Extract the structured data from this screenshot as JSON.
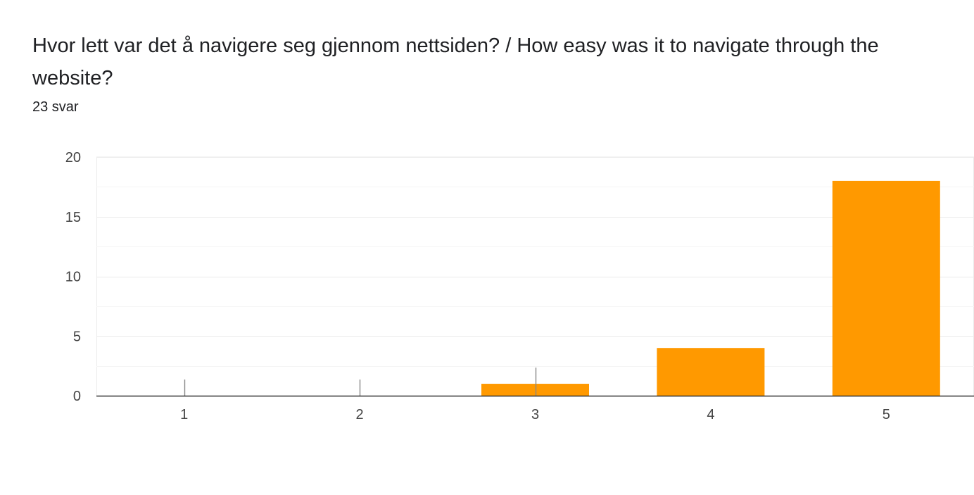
{
  "question": {
    "title": "Hvor lett var det å navigere seg gjennom nettsiden? / How easy was it to navigate through the website?",
    "response_count": "23 svar"
  },
  "colors": {
    "bar": "#ff9900",
    "grid": "#ebebeb",
    "minor_grid": "#f5f5f5",
    "baseline": "#333333",
    "zero_marker": "#888888"
  },
  "chart_data": {
    "type": "bar",
    "title": "Hvor lett var det å navigere seg gjennom nettsiden? / How easy was it to navigate through the website?",
    "categories": [
      "1",
      "2",
      "3",
      "4",
      "5"
    ],
    "values": [
      0,
      0,
      1,
      4,
      18
    ],
    "xlabel": "",
    "ylabel": "",
    "ylim": [
      0,
      20
    ],
    "yticks": [
      "0",
      "5",
      "10",
      "15",
      "20"
    ],
    "grid": true,
    "legend": "none"
  }
}
